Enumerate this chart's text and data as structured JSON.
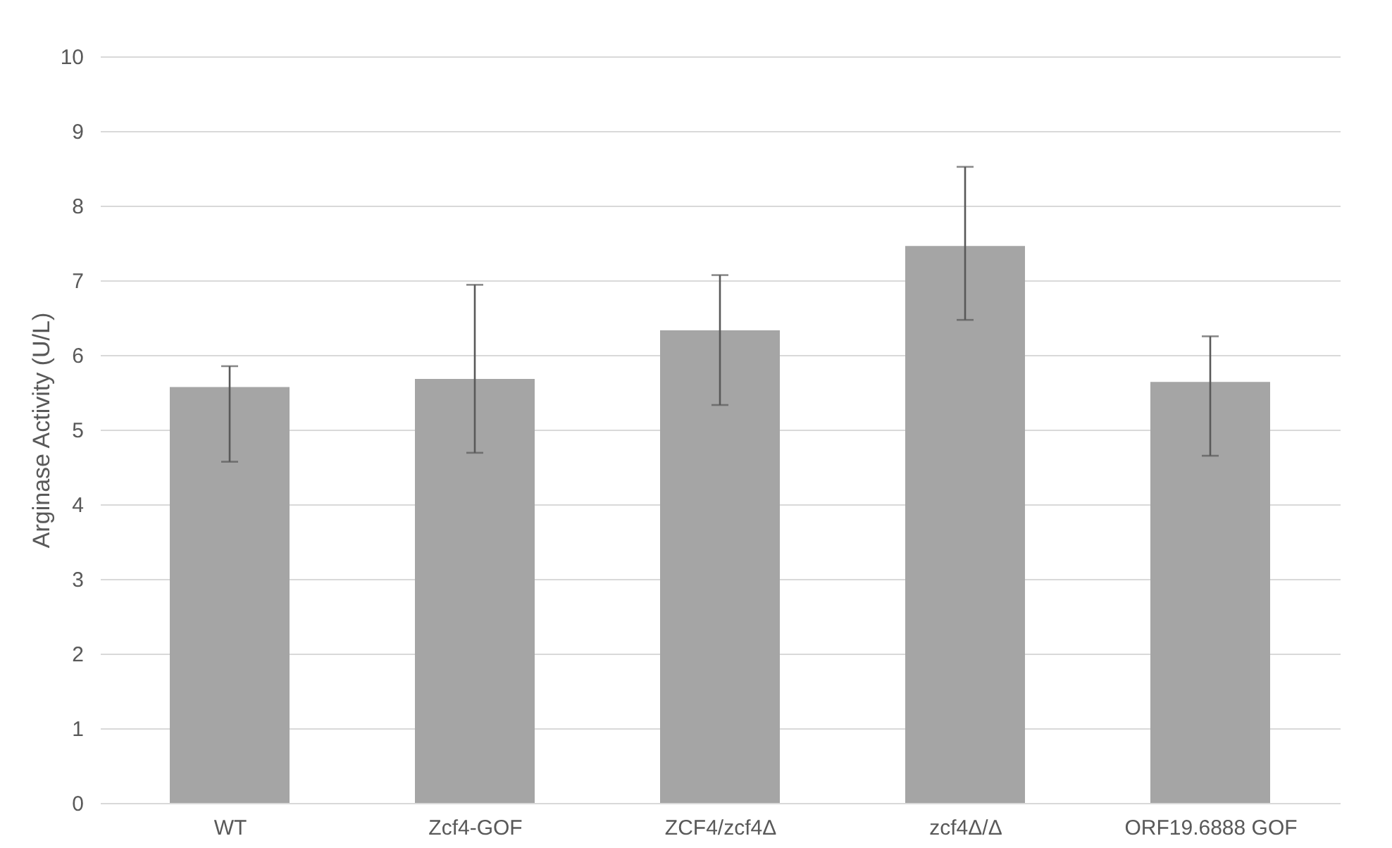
{
  "chart_data": {
    "type": "bar",
    "ylabel": "Arginase Activity (U/L)",
    "categories": [
      "WT",
      "Zcf4-GOF",
      "ZCF4/zcf4Δ",
      "zcf4Δ/Δ",
      "ORF19.6888 GOF"
    ],
    "values": [
      5.57,
      5.68,
      6.33,
      7.46,
      5.64
    ],
    "errors": [
      [
        4.57,
        5.85
      ],
      [
        4.69,
        6.94
      ],
      [
        5.33,
        7.07
      ],
      [
        6.47,
        8.52
      ],
      [
        4.65,
        6.25
      ]
    ],
    "color": "#a5a5a5",
    "ylim": [
      0,
      10
    ],
    "yticks": [
      0,
      1,
      2,
      3,
      4,
      5,
      6,
      7,
      8,
      9,
      10
    ],
    "grid": "y"
  }
}
